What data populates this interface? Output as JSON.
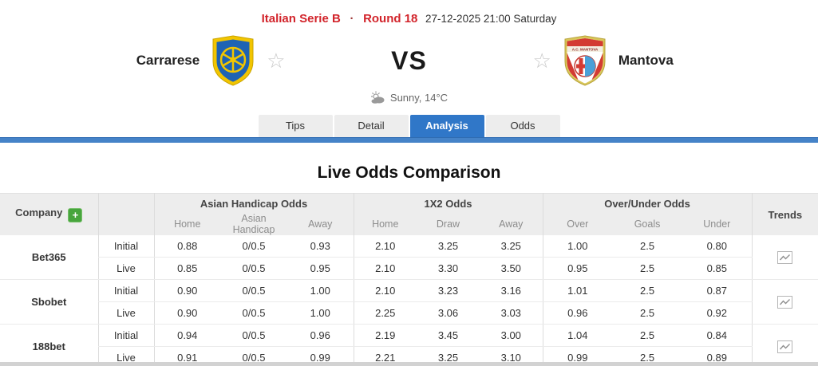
{
  "header": {
    "league": "Italian Serie B",
    "separator": "·",
    "round": "Round 18",
    "datetime": "27-12-2025 21:00 Saturday",
    "home_team": "Carrarese",
    "away_team": "Mantova",
    "vs": "VS",
    "weather": "Sunny, 14°C"
  },
  "tabs": [
    {
      "label": "Tips",
      "active": false
    },
    {
      "label": "Detail",
      "active": false
    },
    {
      "label": "Analysis",
      "active": true
    },
    {
      "label": "Odds",
      "active": false
    }
  ],
  "section_title": "Live Odds Comparison",
  "table": {
    "company_label": "Company",
    "add_button_label": "+",
    "groups": [
      "Asian Handicap Odds",
      "1X2 Odds",
      "Over/Under Odds"
    ],
    "sub_headers": [
      "Home",
      "Asian Handicap",
      "Away",
      "Home",
      "Draw",
      "Away",
      "Over",
      "Goals",
      "Under"
    ],
    "trends_label": "Trends",
    "row_labels": [
      "Initial",
      "Live"
    ],
    "companies": [
      {
        "name": "Bet365",
        "rows": [
          {
            "label": "Initial",
            "ah": [
              "0.88",
              "0/0.5",
              "0.93"
            ],
            "x12": [
              "2.10",
              "3.25",
              "3.25"
            ],
            "ou": [
              "1.00",
              "2.5",
              "0.80"
            ]
          },
          {
            "label": "Live",
            "ah": [
              "0.85",
              "0/0.5",
              "0.95"
            ],
            "x12": [
              "2.10",
              "3.30",
              "3.50"
            ],
            "ou": [
              "0.95",
              "2.5",
              "0.85"
            ]
          }
        ]
      },
      {
        "name": "Sbobet",
        "rows": [
          {
            "label": "Initial",
            "ah": [
              "0.90",
              "0/0.5",
              "1.00"
            ],
            "x12": [
              "2.10",
              "3.23",
              "3.16"
            ],
            "ou": [
              "1.01",
              "2.5",
              "0.87"
            ]
          },
          {
            "label": "Live",
            "ah": [
              "0.90",
              "0/0.5",
              "1.00"
            ],
            "x12": [
              "2.25",
              "3.06",
              "3.03"
            ],
            "ou": [
              "0.96",
              "2.5",
              "0.92"
            ]
          }
        ]
      },
      {
        "name": "188bet",
        "rows": [
          {
            "label": "Initial",
            "ah": [
              "0.94",
              "0/0.5",
              "0.96"
            ],
            "x12": [
              "2.19",
              "3.45",
              "3.00"
            ],
            "ou": [
              "1.04",
              "2.5",
              "0.84"
            ]
          },
          {
            "label": "Live",
            "ah": [
              "0.91",
              "0/0.5",
              "0.99"
            ],
            "x12": [
              "2.21",
              "3.25",
              "3.10"
            ],
            "ou": [
              "0.99",
              "2.5",
              "0.89"
            ]
          }
        ]
      }
    ]
  },
  "colors": {
    "accent_red": "#d2242b",
    "active_tab_blue": "#3077c8",
    "underline_blue": "#4583c8",
    "add_button_green": "#47a53d",
    "ah_cell_green": "#eaf6ec",
    "x12_cell_yellow": "#fbf8dc",
    "header_gray": "#ededed"
  }
}
